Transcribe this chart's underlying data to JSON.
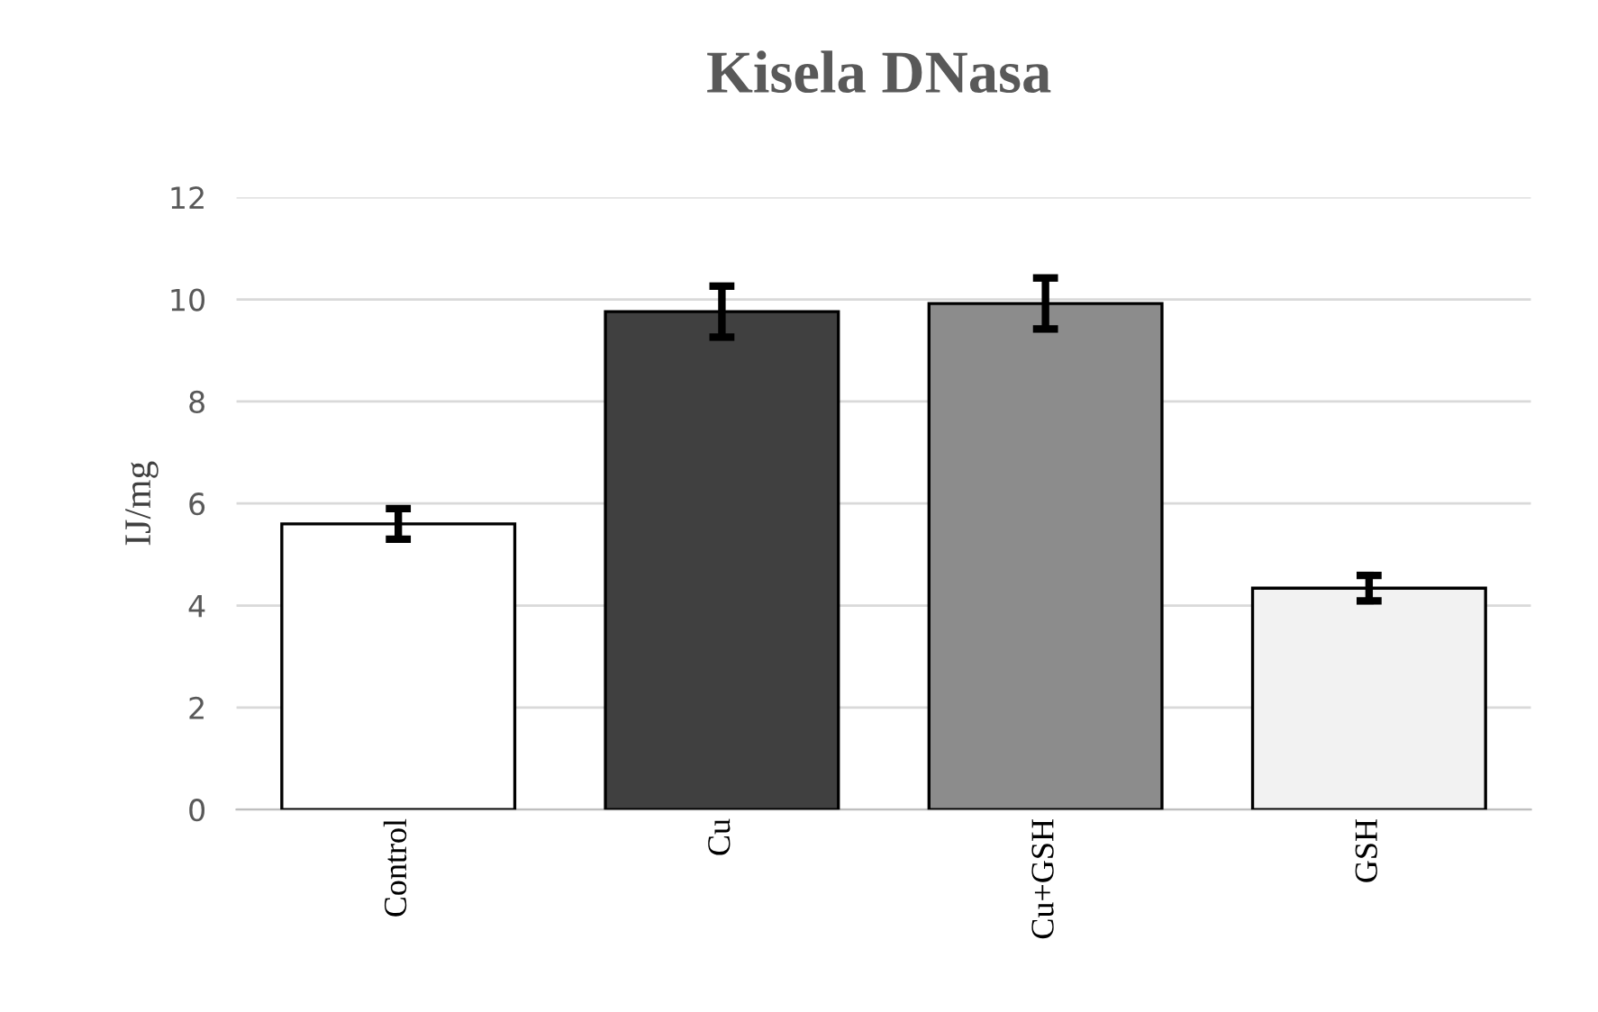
{
  "chart_data": {
    "type": "bar",
    "title": "Kisela DNasa",
    "ylabel": "IJ/mg",
    "categories": [
      "Control",
      "Cu",
      "Cu+GSH",
      "GSH"
    ],
    "values": [
      5.6,
      9.76,
      9.92,
      4.34
    ],
    "errors": [
      0.3,
      0.5,
      0.5,
      0.25
    ],
    "colors": [
      "#ffffff",
      "#404040",
      "#8c8c8c",
      "#f2f2f2"
    ],
    "ylim": [
      0,
      12
    ],
    "yticks": [
      0,
      2,
      4,
      6,
      8,
      10,
      12
    ],
    "grid": "y"
  }
}
